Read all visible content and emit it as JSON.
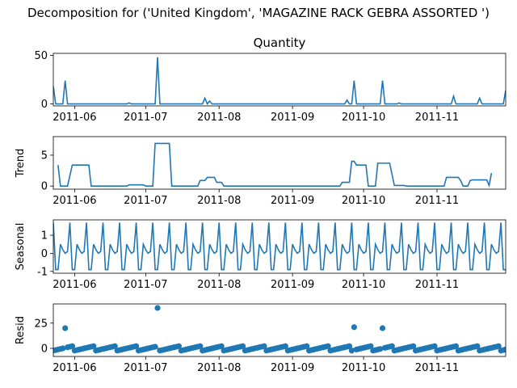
{
  "figure": {
    "suptitle": "Decomposition for ('United Kingdom', 'MAGAZINE RACK GEBRA ASSORTED ')",
    "line_color": "#1f77b4"
  },
  "chart_data": [
    {
      "type": "line",
      "panel": "observed",
      "title": "Quantity",
      "ylabel": "",
      "xlim": [
        "2011-05-23",
        "2011-11-30"
      ],
      "ylim": [
        -2,
        52
      ],
      "yticks": [
        0,
        50
      ],
      "xticks": [
        "2011-06",
        "2011-07",
        "2011-08",
        "2011-09",
        "2011-10",
        "2011-11"
      ],
      "baseline": 0,
      "spikes": [
        {
          "date": "2011-05-23",
          "value": 18
        },
        {
          "date": "2011-05-28",
          "value": 24
        },
        {
          "date": "2011-06-24",
          "value": 1
        },
        {
          "date": "2011-07-06",
          "value": 48
        },
        {
          "date": "2011-07-26",
          "value": 6
        },
        {
          "date": "2011-07-28",
          "value": 3
        },
        {
          "date": "2011-09-24",
          "value": 4
        },
        {
          "date": "2011-09-27",
          "value": 24
        },
        {
          "date": "2011-10-09",
          "value": 24
        },
        {
          "date": "2011-10-16",
          "value": 1
        },
        {
          "date": "2011-11-08",
          "value": 8
        },
        {
          "date": "2011-11-19",
          "value": 6
        },
        {
          "date": "2011-11-30",
          "value": 14
        }
      ]
    },
    {
      "type": "line",
      "panel": "trend",
      "title": "",
      "ylabel": "Trend",
      "xlim": [
        "2011-05-23",
        "2011-11-30"
      ],
      "ylim": [
        -0.5,
        8
      ],
      "yticks": [
        0,
        5
      ],
      "xticks": [
        "2011-06",
        "2011-07",
        "2011-08",
        "2011-09",
        "2011-10",
        "2011-11"
      ],
      "points": [
        [
          "2011-05-25",
          3.4
        ],
        [
          "2011-05-26",
          0
        ],
        [
          "2011-05-29",
          0
        ],
        [
          "2011-05-31",
          3.4
        ],
        [
          "2011-06-07",
          3.4
        ],
        [
          "2011-06-08",
          0
        ],
        [
          "2011-06-23",
          0
        ],
        [
          "2011-06-24",
          0.2
        ],
        [
          "2011-06-30",
          0.2
        ],
        [
          "2011-07-01",
          0
        ],
        [
          "2011-07-04",
          0
        ],
        [
          "2011-07-05",
          6.9
        ],
        [
          "2011-07-11",
          6.9
        ],
        [
          "2011-07-12",
          0
        ],
        [
          "2011-07-23",
          0
        ],
        [
          "2011-07-24",
          0.9
        ],
        [
          "2011-07-26",
          0.9
        ],
        [
          "2011-07-27",
          1.4
        ],
        [
          "2011-07-30",
          1.4
        ],
        [
          "2011-07-31",
          0.6
        ],
        [
          "2011-08-02",
          0.6
        ],
        [
          "2011-08-03",
          0
        ],
        [
          "2011-09-21",
          0
        ],
        [
          "2011-09-22",
          0.6
        ],
        [
          "2011-09-25",
          0.6
        ],
        [
          "2011-09-26",
          4
        ],
        [
          "2011-09-27",
          4
        ],
        [
          "2011-09-28",
          3.4
        ],
        [
          "2011-10-02",
          3.4
        ],
        [
          "2011-10-03",
          0
        ],
        [
          "2011-10-06",
          0
        ],
        [
          "2011-10-07",
          3.7
        ],
        [
          "2011-10-12",
          3.7
        ],
        [
          "2011-10-14",
          0.1
        ],
        [
          "2011-10-18",
          0.1
        ],
        [
          "2011-10-19",
          0
        ],
        [
          "2011-11-04",
          0
        ],
        [
          "2011-11-05",
          1.4
        ],
        [
          "2011-11-10",
          1.4
        ],
        [
          "2011-11-11",
          0.9
        ],
        [
          "2011-11-12",
          0
        ],
        [
          "2011-11-14",
          0
        ],
        [
          "2011-11-15",
          0.9
        ],
        [
          "2011-11-16",
          1
        ],
        [
          "2011-11-22",
          1
        ],
        [
          "2011-11-23",
          0.1
        ],
        [
          "2011-11-24",
          2.1
        ]
      ]
    },
    {
      "type": "line",
      "panel": "seasonal",
      "title": "",
      "ylabel": "Seasonal",
      "xlim": [
        "2011-05-23",
        "2011-11-30"
      ],
      "ylim": [
        -1.1,
        1.85
      ],
      "yticks": [
        -1,
        0,
        1
      ],
      "xticks": [
        "2011-06",
        "2011-07",
        "2011-08",
        "2011-09",
        "2011-10",
        "2011-11"
      ],
      "period": 7,
      "cycle": [
        1.7,
        -0.9,
        -0.9,
        0.5,
        0.2,
        0.0,
        0.1
      ]
    },
    {
      "type": "scatter",
      "panel": "resid",
      "title": "",
      "ylabel": "Resid",
      "xlim": [
        "2011-05-23",
        "2011-11-30"
      ],
      "ylim": [
        -8,
        44
      ],
      "yticks": [
        0,
        25
      ],
      "xticks": [
        "2011-06",
        "2011-07",
        "2011-08",
        "2011-09",
        "2011-10",
        "2011-11"
      ],
      "zero_line": true,
      "outliers": [
        {
          "date": "2011-05-28",
          "value": 20
        },
        {
          "date": "2011-07-06",
          "value": 40
        },
        {
          "date": "2011-09-27",
          "value": 21
        },
        {
          "date": "2011-10-09",
          "value": 20
        }
      ]
    }
  ]
}
